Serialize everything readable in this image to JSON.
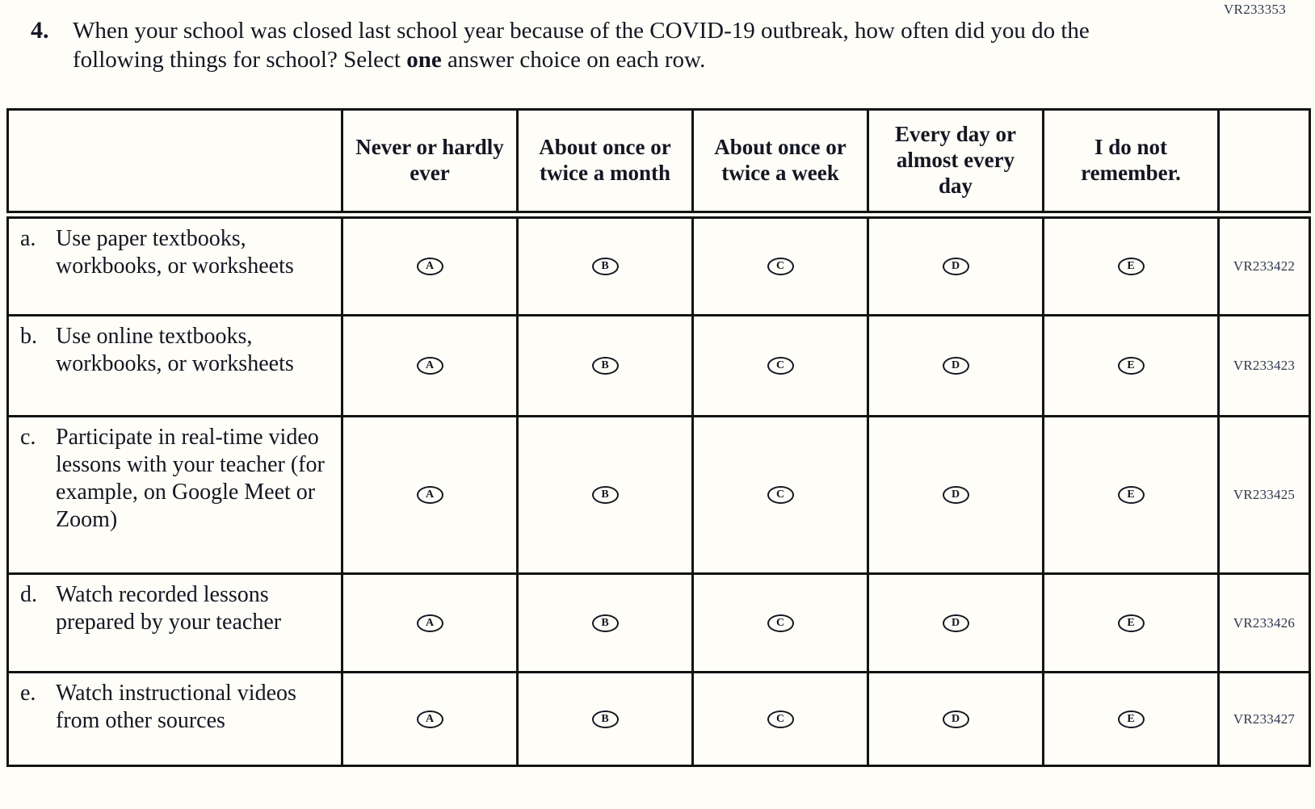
{
  "page": {
    "form_code": "VR233353",
    "colors": {
      "ink": "#141622",
      "border": "#131313",
      "code_ink": "#2e3850",
      "background": "#fffdf7"
    }
  },
  "question": {
    "number": "4.",
    "text_before_bold": "When your school was closed last school year because of the COVID-19 outbreak, how often did you do the following things for school?  Select ",
    "bold_word": "one",
    "text_after_bold": " answer choice on each row."
  },
  "table": {
    "columns": [
      "Never or hardly ever",
      "About once or twice a month",
      "About once or twice a week",
      "Every day or almost every day",
      "I do not remember."
    ],
    "options": [
      "A",
      "B",
      "C",
      "D",
      "E"
    ],
    "rows": [
      {
        "letter": "a.",
        "label": "Use paper textbooks, workbooks, or worksheets",
        "code": "VR233422"
      },
      {
        "letter": "b.",
        "label": "Use online textbooks, workbooks, or worksheets",
        "code": "VR233423"
      },
      {
        "letter": "c.",
        "label": "Participate in real-time video lessons with your teacher (for example, on Google Meet or Zoom)",
        "code": "VR233425"
      },
      {
        "letter": "d.",
        "label": "Watch recorded lessons prepared by your teacher",
        "code": "VR233426"
      },
      {
        "letter": "e.",
        "label": "Watch instructional videos from other sources",
        "code": "VR233427"
      }
    ]
  }
}
